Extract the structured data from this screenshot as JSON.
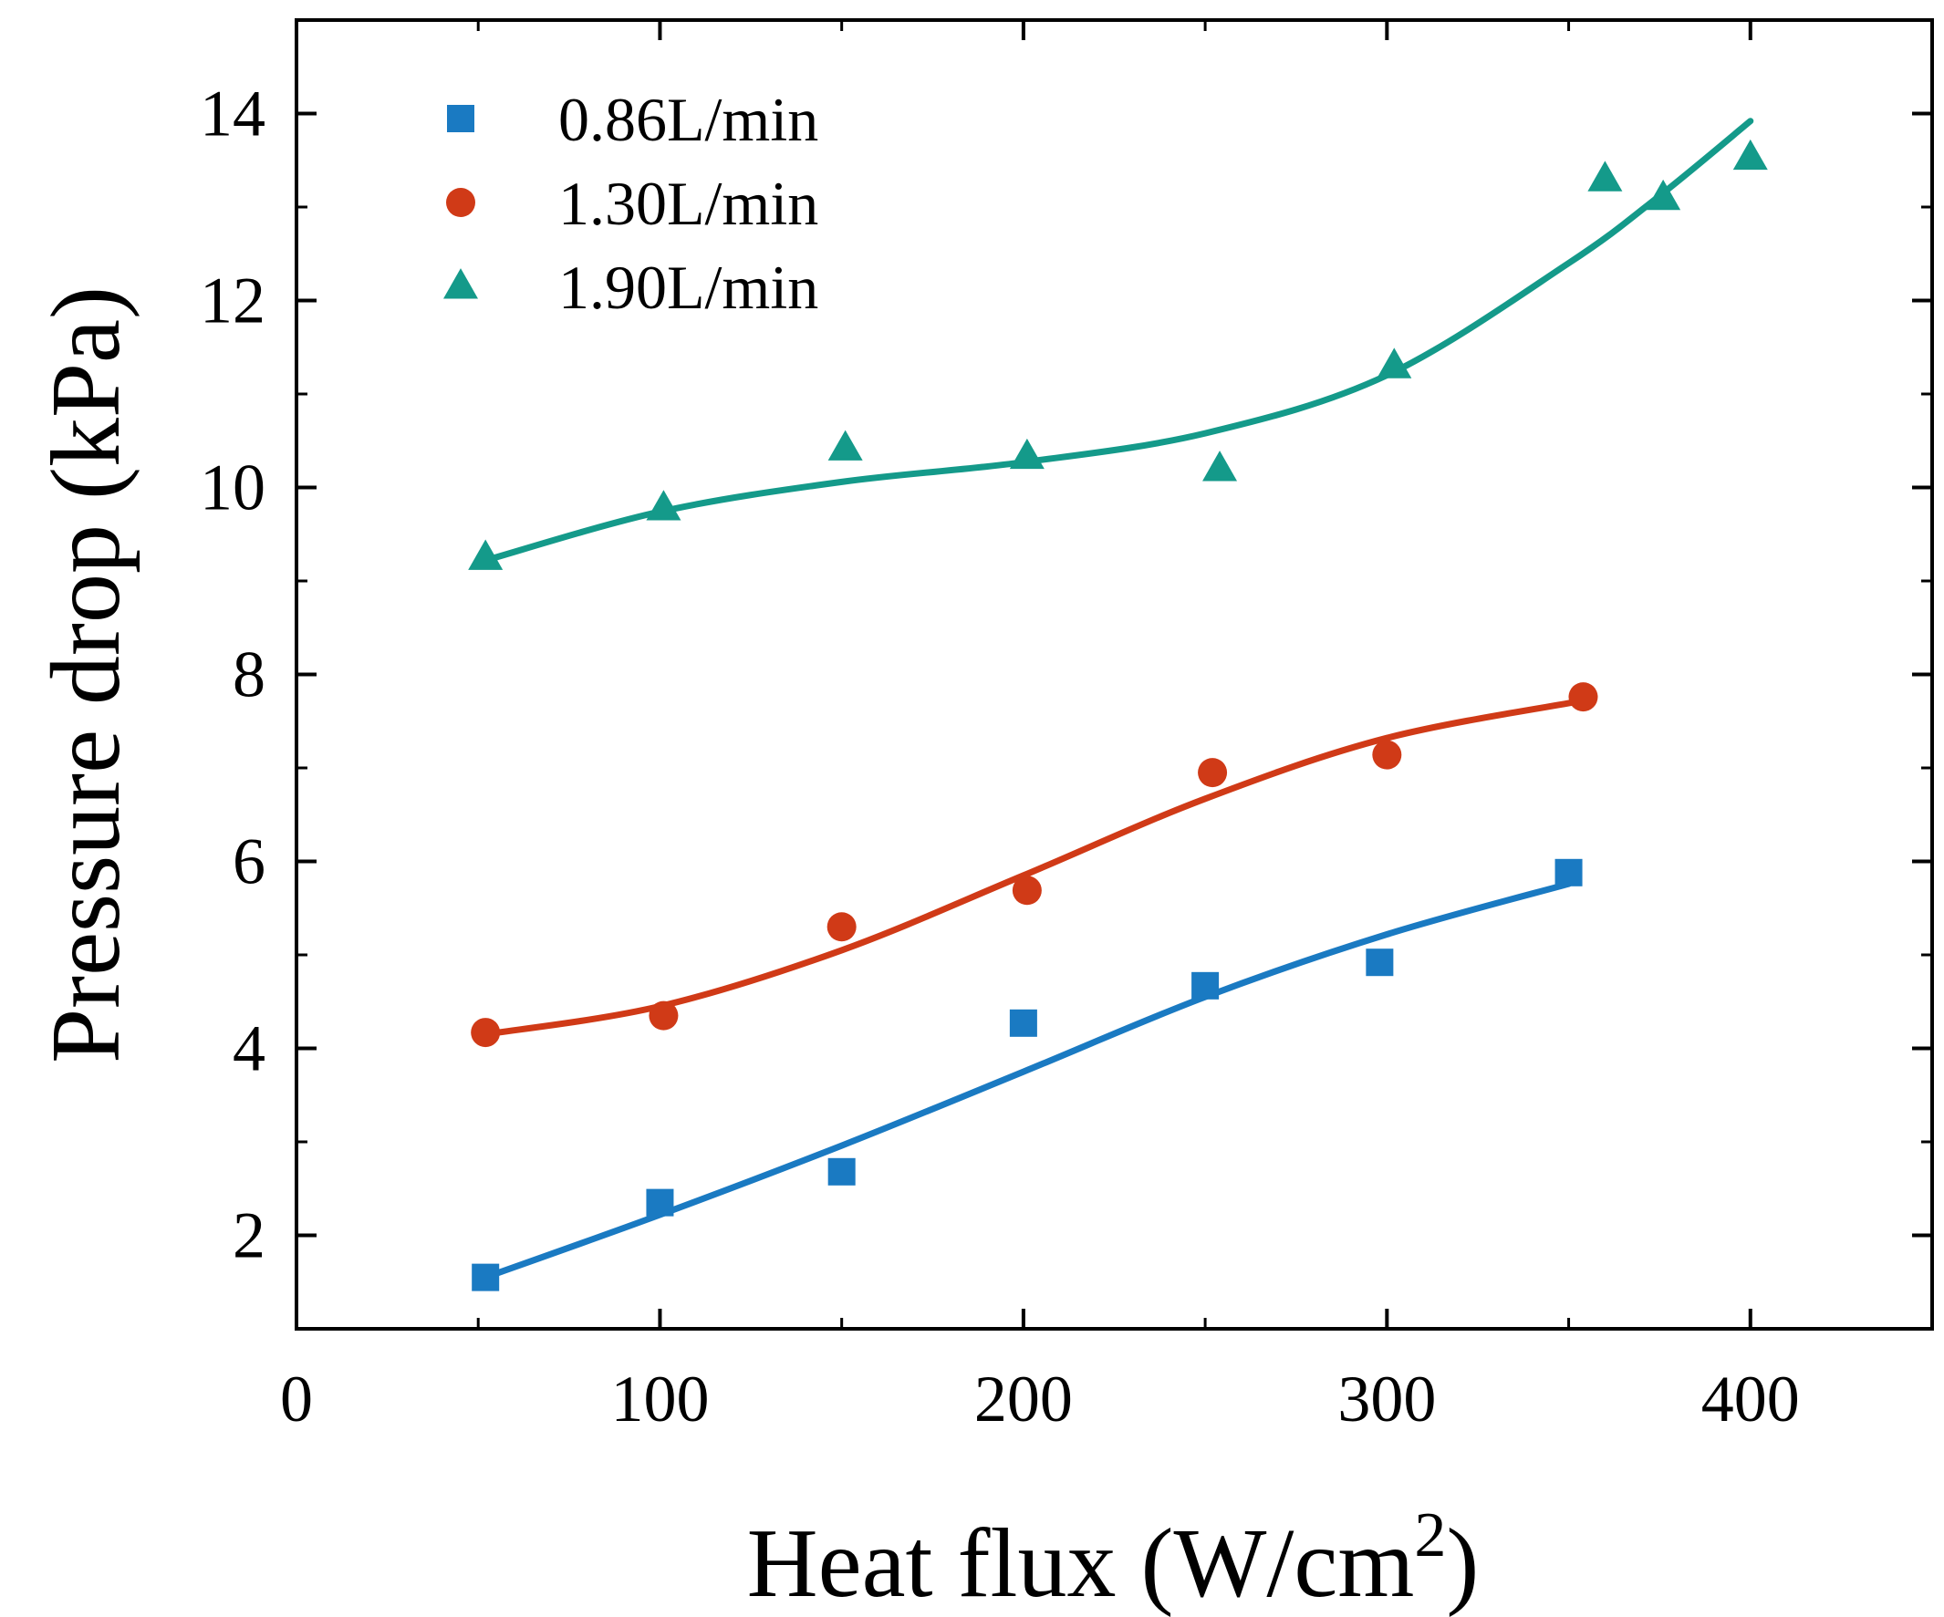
{
  "chart_data": {
    "type": "scatter",
    "title": "",
    "xlabel": "Heat flux (W/cm",
    "xlabel_sup": "2",
    "xlabel_close": ")",
    "ylabel": "Pressure drop (kPa)",
    "xlim": [
      0,
      450
    ],
    "ylim": [
      1,
      15
    ],
    "x_ticks": [
      0,
      100,
      200,
      300,
      400
    ],
    "x_tick_labels": [
      "0",
      "100",
      "200",
      "300",
      "400"
    ],
    "x_minor_ticks": [
      50,
      150,
      250,
      350
    ],
    "y_ticks": [
      2,
      4,
      6,
      8,
      10,
      12,
      14
    ],
    "y_tick_labels": [
      "2",
      "4",
      "6",
      "8",
      "10",
      "12",
      "14"
    ],
    "y_minor_ticks": [
      3,
      5,
      7,
      9,
      11,
      13
    ],
    "grid": false,
    "legend": "top-left",
    "series": [
      {
        "name": "0.86L/min",
        "marker": "square",
        "color": "#1a7ac2",
        "x": [
          52,
          100,
          150,
          200,
          250,
          298,
          350
        ],
        "y": [
          1.55,
          2.35,
          2.68,
          4.27,
          4.67,
          4.92,
          5.88
        ],
        "fit_x": [
          52,
          100,
          150,
          200,
          250,
          300,
          350
        ],
        "fit_y": [
          1.55,
          2.22,
          2.96,
          3.75,
          4.55,
          5.22,
          5.76
        ]
      },
      {
        "name": "1.30L/min",
        "marker": "circle",
        "color": "#d03a17",
        "x": [
          52,
          101,
          150,
          201,
          252,
          300,
          354
        ],
        "y": [
          4.17,
          4.35,
          5.3,
          5.69,
          6.95,
          7.14,
          7.76
        ],
        "fit_x": [
          52,
          100,
          150,
          200,
          250,
          300,
          354
        ],
        "fit_y": [
          4.15,
          4.45,
          5.05,
          5.85,
          6.67,
          7.32,
          7.72
        ]
      },
      {
        "name": "1.90L/min",
        "marker": "triangle",
        "color": "#149a8a",
        "x": [
          52,
          101,
          151,
          201,
          254,
          302,
          360,
          376,
          400
        ],
        "y": [
          9.25,
          9.78,
          10.42,
          10.33,
          10.2,
          11.3,
          13.3,
          13.1,
          13.53
        ],
        "fit_x": [
          52,
          100,
          150,
          200,
          250,
          300,
          350,
          375,
          400
        ],
        "fit_y": [
          9.22,
          9.74,
          10.06,
          10.27,
          10.58,
          11.2,
          12.4,
          13.12,
          13.92
        ]
      }
    ]
  }
}
